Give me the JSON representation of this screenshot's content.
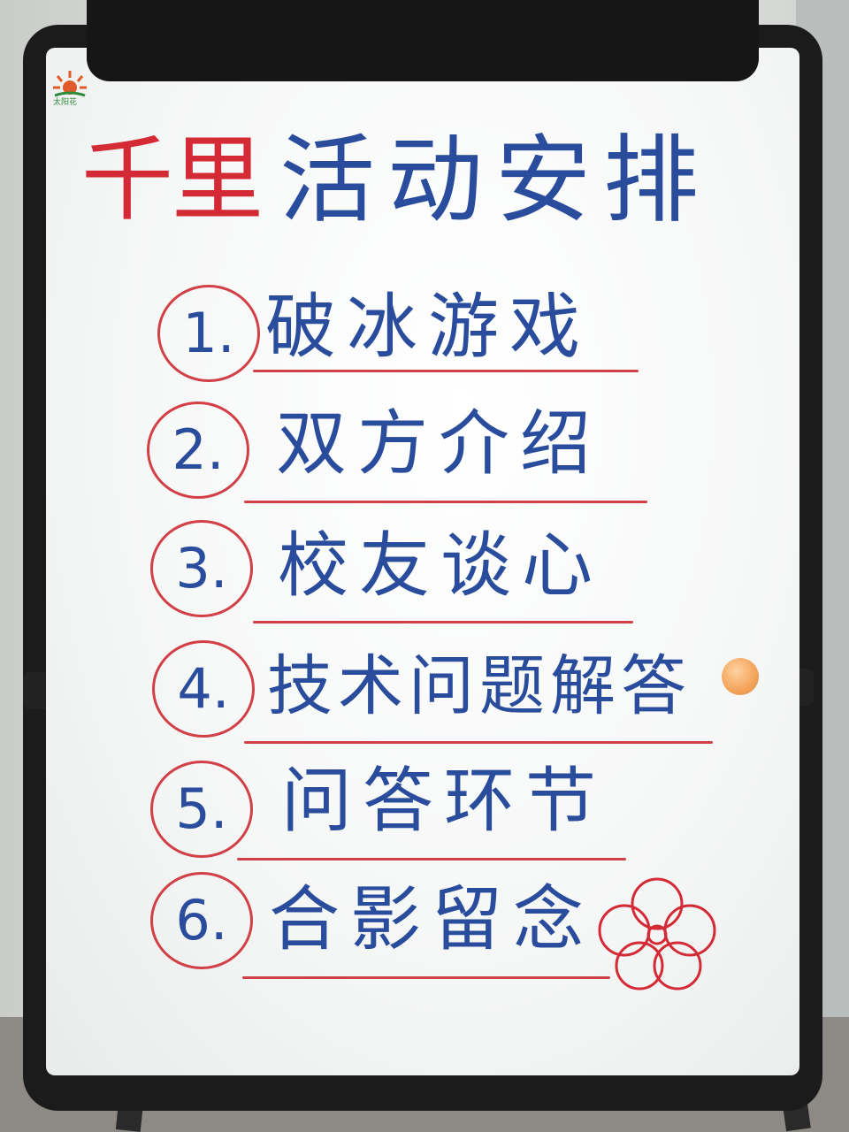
{
  "logo": {
    "icon": "sun-logo",
    "text": "太阳花"
  },
  "title": {
    "red": "千里",
    "blue": "活动安排"
  },
  "items": [
    {
      "number": "1.",
      "text": "破冰游戏"
    },
    {
      "number": "2.",
      "text": "双方介绍"
    },
    {
      "number": "3.",
      "text": "校友谈心"
    },
    {
      "number": "4.",
      "text": "技术问题解答"
    },
    {
      "number": "5.",
      "text": "问答环节"
    },
    {
      "number": "6.",
      "text": "合影留念"
    }
  ],
  "colors": {
    "red_marker": "#d42a35",
    "blue_marker": "#2a4c9c",
    "frame": "#1b1b1b",
    "magnet": "#f3a35a"
  }
}
